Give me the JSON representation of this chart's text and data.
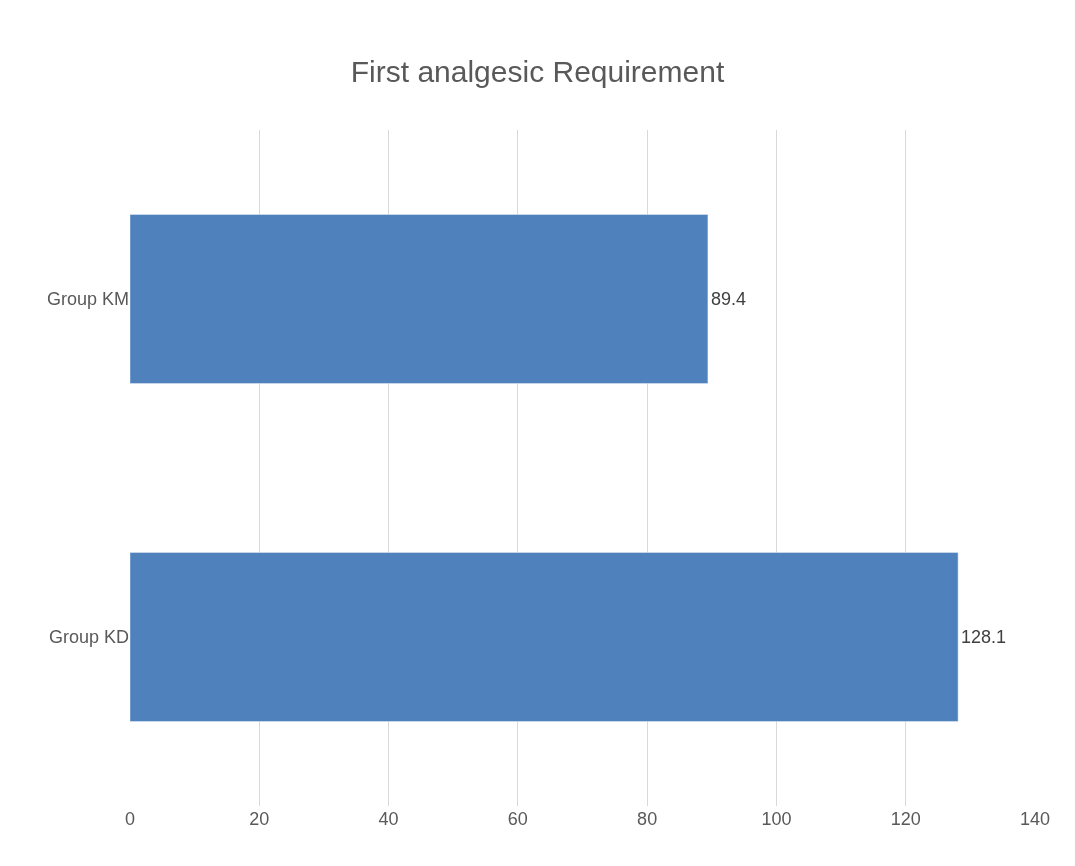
{
  "chart_data": {
    "type": "bar",
    "orientation": "horizontal",
    "title": "First analgesic Requirement",
    "categories": [
      "Group KM",
      "Group KD"
    ],
    "values": [
      89.4,
      128.1
    ],
    "color": "#4f81bd",
    "xlim": [
      0,
      140
    ],
    "xticks": [
      0,
      20,
      40,
      60,
      80,
      100,
      120,
      140
    ],
    "grid": "x",
    "data_labels": true,
    "legend": false
  }
}
